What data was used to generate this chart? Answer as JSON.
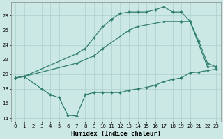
{
  "series": [
    {
      "x": [
        0,
        1,
        7,
        8,
        9,
        10,
        11,
        12,
        13,
        14,
        15,
        16,
        17,
        18,
        19,
        20,
        21,
        22,
        23
      ],
      "y": [
        19.5,
        19.7,
        22.8,
        23.5,
        25.0,
        26.5,
        27.5,
        28.3,
        28.5,
        28.5,
        28.5,
        28.8,
        29.2,
        28.5,
        28.5,
        27.2,
        24.5,
        21.5,
        21.0
      ]
    },
    {
      "x": [
        0,
        1,
        7,
        9,
        10,
        13,
        14,
        17,
        19,
        20,
        22,
        23
      ],
      "y": [
        19.5,
        19.7,
        21.5,
        22.5,
        23.5,
        26.0,
        26.5,
        27.2,
        27.2,
        27.2,
        21.0,
        21.0
      ]
    },
    {
      "x": [
        0,
        1,
        3,
        4,
        5,
        6,
        7,
        8,
        9,
        10,
        11,
        12,
        13,
        14,
        15,
        16,
        17,
        18,
        19,
        20,
        21,
        22,
        23
      ],
      "y": [
        19.5,
        19.7,
        18.0,
        17.2,
        16.8,
        14.4,
        14.3,
        17.2,
        17.5,
        17.5,
        17.5,
        17.5,
        17.8,
        18.0,
        18.2,
        18.5,
        19.0,
        19.3,
        19.5,
        20.2,
        20.3,
        20.5,
        20.7
      ]
    }
  ],
  "color": "#2e7d6e",
  "bg_color": "#cce8e4",
  "grid_color": "#aad0cc",
  "xlim": [
    -0.5,
    23.5
  ],
  "ylim": [
    13.5,
    29.8
  ],
  "yticks": [
    14,
    16,
    18,
    20,
    22,
    24,
    26,
    28
  ],
  "xticks": [
    0,
    1,
    2,
    3,
    4,
    5,
    6,
    7,
    8,
    9,
    10,
    11,
    12,
    13,
    14,
    15,
    16,
    17,
    18,
    19,
    20,
    21,
    22,
    23
  ],
  "xlabel": "Humidex (Indice chaleur)",
  "xlabel_fontsize": 6.5,
  "tick_fontsize": 5.0,
  "marker": "D",
  "marker_size": 2.0,
  "linewidth": 0.9
}
